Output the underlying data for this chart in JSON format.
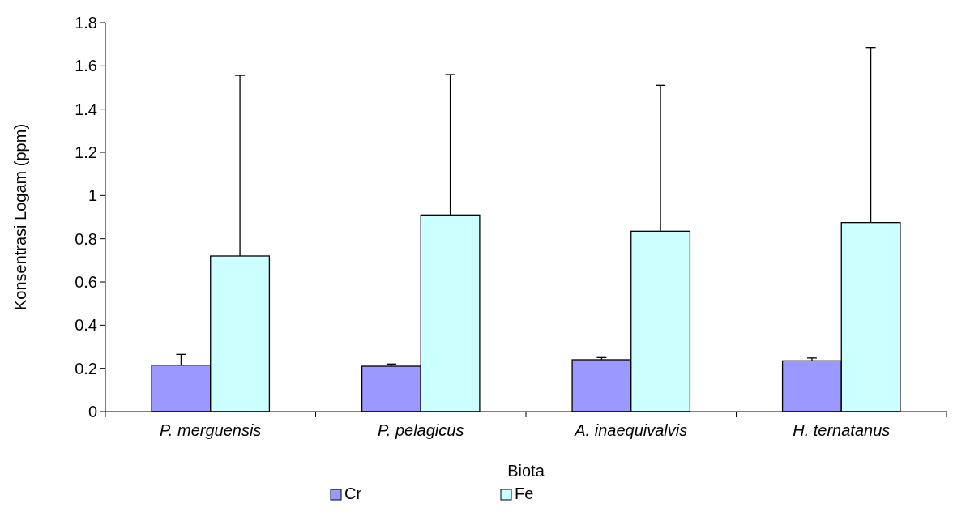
{
  "chart_data": {
    "type": "bar",
    "xlabel": "Biota",
    "ylabel": "Konsentrasi Logam (ppm)",
    "categories": [
      "P. merguensis",
      "P. pelagicus",
      "A. inaequivalvis",
      "H. ternatanus"
    ],
    "series": [
      {
        "name": "Cr",
        "color": "#9999ff",
        "values": [
          0.215,
          0.21,
          0.24,
          0.235
        ],
        "errors": [
          [
            0.215,
            0.265
          ],
          [
            0.21,
            0.22
          ],
          [
            0.24,
            0.25
          ],
          [
            0.235,
            0.248
          ]
        ]
      },
      {
        "name": "Fe",
        "color": "#ccffff",
        "values": [
          0.72,
          0.91,
          0.835,
          0.875
        ],
        "errors": [
          [
            0.72,
            1.556
          ],
          [
            0.91,
            1.56
          ],
          [
            0.835,
            1.51
          ],
          [
            0.875,
            1.685
          ]
        ]
      }
    ],
    "ylim": [
      0,
      1.8
    ],
    "yticks": [
      0,
      0.2,
      0.4,
      0.6,
      0.8,
      1,
      1.2,
      1.4,
      1.6,
      1.8
    ],
    "grid": false,
    "legend": "bottom"
  }
}
